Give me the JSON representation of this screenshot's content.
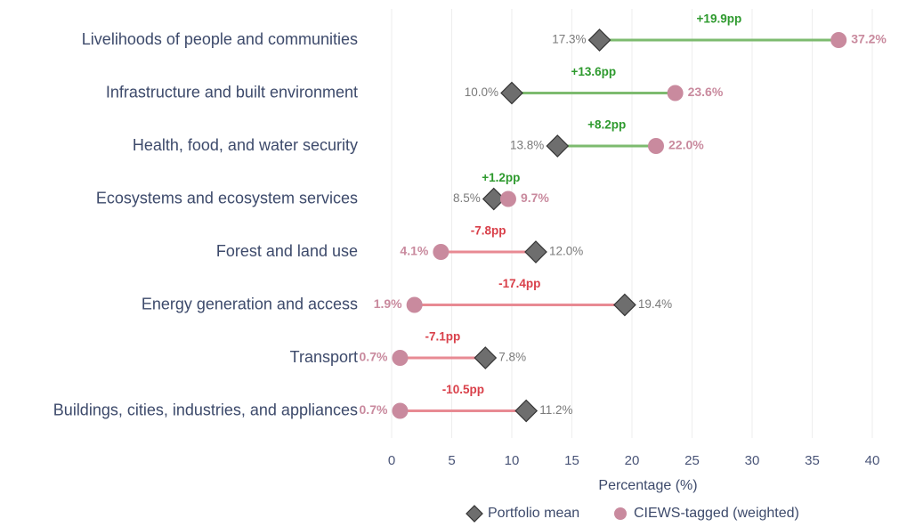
{
  "chart_data": {
    "type": "dumbbell",
    "x_label": "Percentage (%)",
    "categories": [
      "Livelihoods of people and communities",
      "Infrastructure and built environment",
      "Health, food, and water security",
      "Ecosystems and ecosystem services",
      "Forest and land use",
      "Energy generation and access",
      "Transport",
      "Buildings, cities, industries, and appliances"
    ],
    "series": [
      {
        "name": "Portfolio mean",
        "color": "#6e6e6e",
        "values": [
          17.3,
          10.0,
          13.8,
          8.5,
          12.0,
          19.4,
          7.8,
          11.2
        ],
        "value_labels": [
          "17.3%",
          "10.0%",
          "13.8%",
          "8.5%",
          "12.0%",
          "19.4%",
          "7.8%",
          "11.2%"
        ]
      },
      {
        "name": "CIEWS-tagged (weighted)",
        "color": "#c98a9e",
        "values": [
          37.2,
          23.6,
          22.0,
          9.7,
          4.1,
          1.9,
          0.7,
          0.7
        ],
        "value_labels": [
          "37.2%",
          "23.6%",
          "22.0%",
          "9.7%",
          "4.1%",
          "1.9%",
          "0.7%",
          "0.7%"
        ]
      }
    ],
    "differences": {
      "values": [
        19.9,
        13.6,
        8.2,
        1.2,
        -7.8,
        -17.4,
        -7.1,
        -10.5
      ],
      "value_labels": [
        "+19.9pp",
        "+13.6pp",
        "+8.2pp",
        "+1.2pp",
        "-7.8pp",
        "-17.4pp",
        "-7.1pp",
        "-10.5pp"
      ],
      "positive_color": "#2e9a2e",
      "negative_color": "#d9404a",
      "positive_line_color": "#7dbb6f",
      "negative_line_color": "#e88a93"
    },
    "xlim": [
      -2,
      42
    ],
    "xticks": [
      0,
      5,
      10,
      15,
      20,
      25,
      30,
      35,
      40
    ],
    "grid": true,
    "legend": "bottom"
  }
}
